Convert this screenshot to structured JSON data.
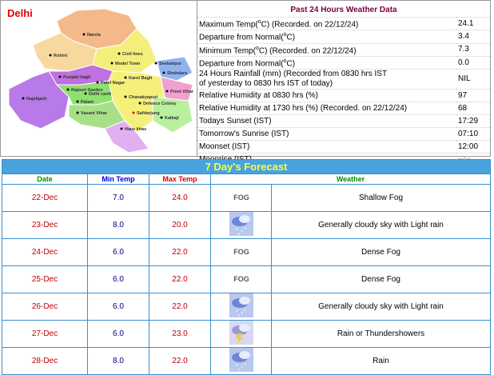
{
  "map": {
    "title": "Delhi",
    "labels": [
      "Narela",
      "Rohini",
      "Civil lines",
      "Model Town",
      "Shahdara",
      "Seelampur",
      "Punjabi bagh",
      "Patel Nagar",
      "Karol Bagh",
      "Preet Vihar",
      "Najafgarh",
      "Rajouri Garden",
      "Delhi cantt",
      "Palam",
      "Vasant Vihar",
      "Chanakyapuri",
      "Defence Colony",
      "Safdarjung",
      "Kalkaji",
      "Hauz khas"
    ]
  },
  "past": {
    "title": "Past 24 Hours Weather Data",
    "rows": [
      {
        "label": "Maximum Temp(",
        "sup": "o",
        "label_end": "C) (Recorded. on 22/12/24)",
        "value": "24.1"
      },
      {
        "label": "Departure from Normal(",
        "sup": "o",
        "label_end": "C)",
        "value": "3.4"
      },
      {
        "label": "Minimum Temp(",
        "sup": "o",
        "label_end": "C) (Recorded. on 22/12/24)",
        "value": "7.3"
      },
      {
        "label": "Departure from Normal(",
        "sup": "o",
        "label_end": "C)",
        "value": "0.0"
      },
      {
        "label": "24 Hours Rainfall (mm) (Recorded from 0830 hrs IST",
        "label_line2": "of yesterday to 0830 hrs IST of today)",
        "value": "NIL"
      },
      {
        "label": "Relative Humidity at 0830 hrs (%)",
        "value": "97"
      },
      {
        "label": "Relative Humidity at 1730 hrs (%) (Recorded. on 22/12/24)",
        "value": "68"
      },
      {
        "label": "Todays Sunset (IST)",
        "value": "17:29"
      },
      {
        "label": "Tomorrow's Sunrise (IST)",
        "value": "07:10"
      },
      {
        "label": "Moonset (IST)",
        "value": "12:00"
      },
      {
        "label": "Moonrise (IST)",
        "value": "--:--"
      }
    ]
  },
  "forecast": {
    "title": "7 Day's Forecast",
    "headers": [
      "Date",
      "Min Temp",
      "Max Temp",
      "Weather"
    ],
    "rows": [
      {
        "date": "22-Dec",
        "min": "7.0",
        "max": "24.0",
        "icon": "fog",
        "icon_text": "FOG",
        "weather": "Shallow Fog"
      },
      {
        "date": "23-Dec",
        "min": "8.0",
        "max": "20.0",
        "icon": "rain",
        "weather": "Generally cloudy sky with Light rain"
      },
      {
        "date": "24-Dec",
        "min": "6.0",
        "max": "22.0",
        "icon": "fog",
        "icon_text": "FOG",
        "weather": "Dense Fog"
      },
      {
        "date": "25-Dec",
        "min": "6.0",
        "max": "22.0",
        "icon": "fog",
        "icon_text": "FOG",
        "weather": "Dense Fog"
      },
      {
        "date": "26-Dec",
        "min": "6.0",
        "max": "22.0",
        "icon": "rain",
        "weather": "Generally cloudy sky with Light rain"
      },
      {
        "date": "27-Dec",
        "min": "6.0",
        "max": "23.0",
        "icon": "thunder",
        "weather": "Rain or Thundershowers"
      },
      {
        "date": "28-Dec",
        "min": "8.0",
        "max": "22.0",
        "icon": "rain",
        "weather": "Rain"
      }
    ]
  }
}
